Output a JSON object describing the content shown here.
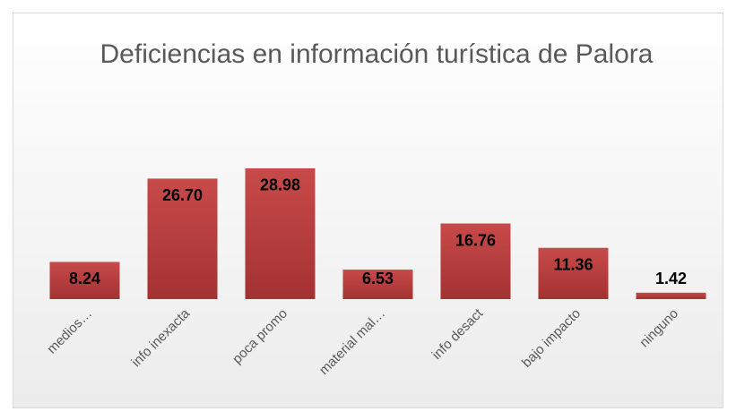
{
  "chart_data": {
    "type": "bar",
    "title": "Deficiencias en información turística de Palora",
    "categories": [
      "medios…",
      "info inexacta",
      "poca promo",
      "material mal…",
      "info desact",
      "bajo impacto",
      "ninguno"
    ],
    "values": [
      8.24,
      26.7,
      28.98,
      6.53,
      16.76,
      11.36,
      1.42
    ],
    "value_labels": [
      "8.24",
      "26.70",
      "28.98",
      "6.53",
      "16.76",
      "11.36",
      "1.42"
    ],
    "color": "#b53c3c"
  }
}
